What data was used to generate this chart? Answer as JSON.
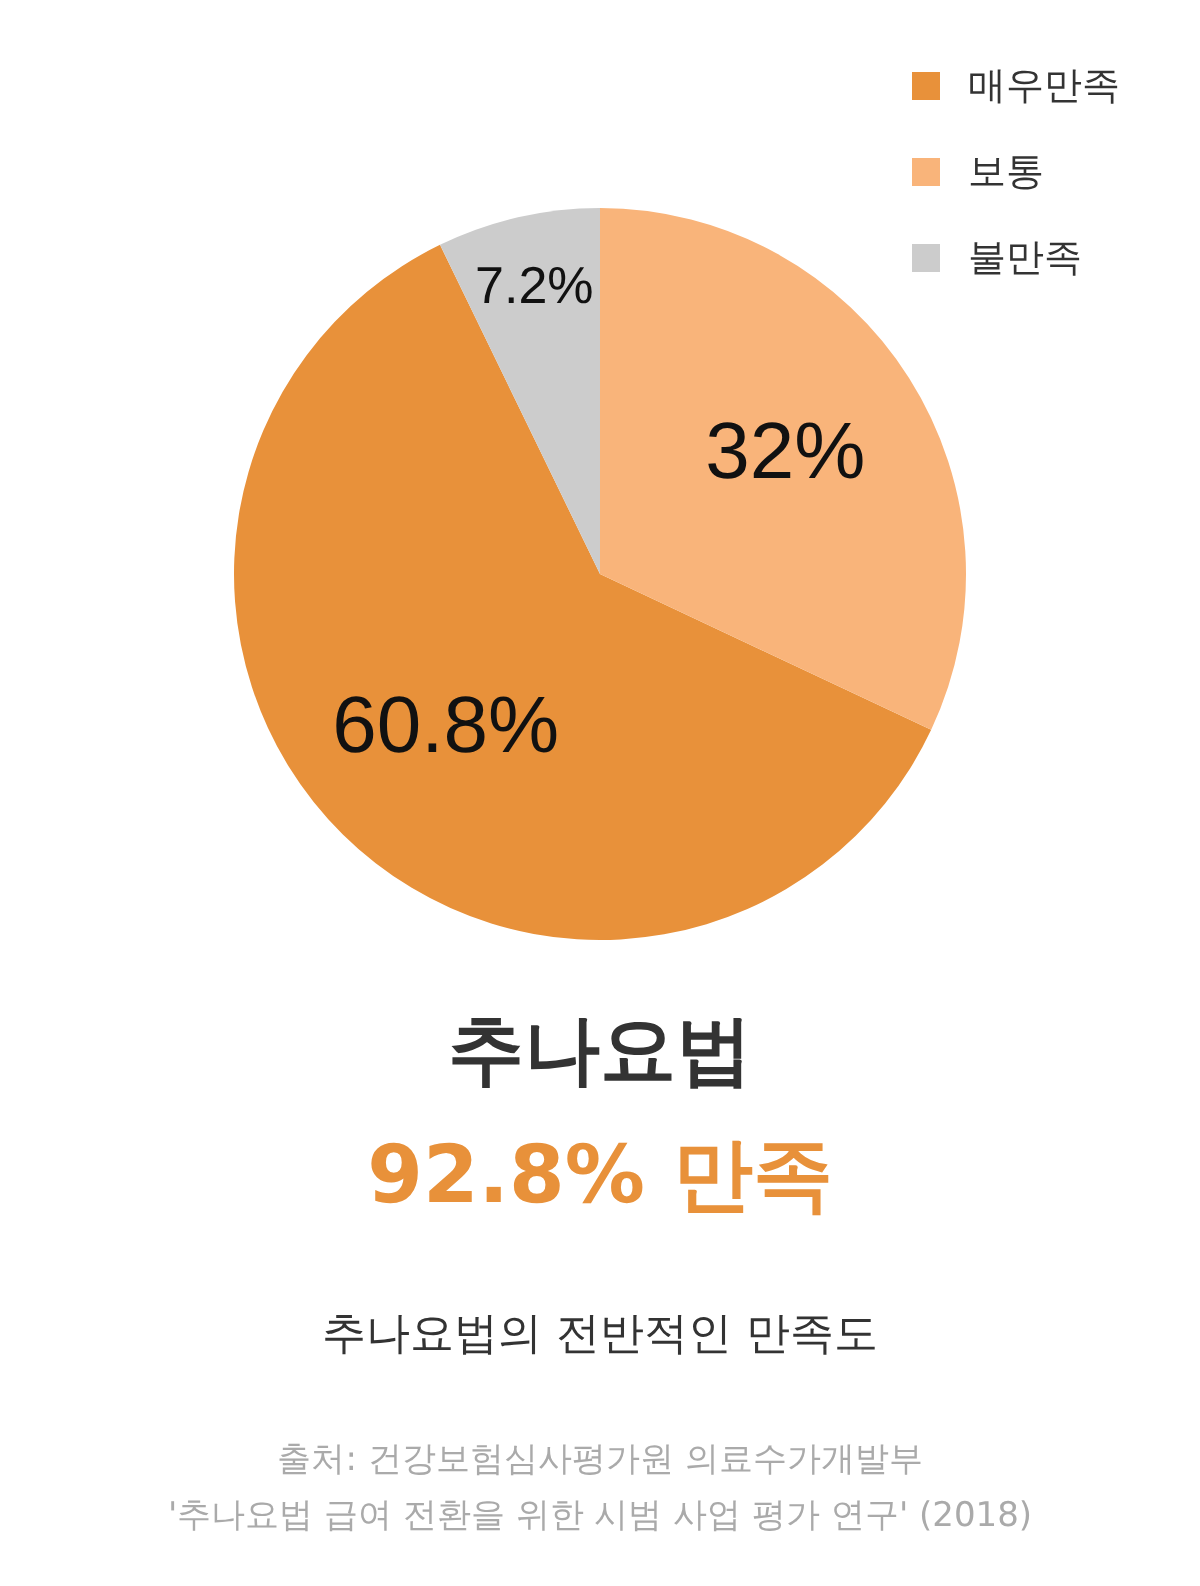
{
  "chart_data": {
    "type": "pie",
    "title": "추나요법",
    "subtitle": "92.8% 만족",
    "categories": [
      "매우만족",
      "보통",
      "불만족"
    ],
    "values": [
      60.8,
      32,
      7.2
    ],
    "colors": [
      "#e8913a",
      "#f9b47a",
      "#cccccc"
    ],
    "value_labels": [
      "60.8%",
      "32%",
      "7.2%"
    ],
    "legend": "top right",
    "annotations": [
      "추나요법의 전반적인 만족도",
      "출처: 건강보험심사평가원 의료수가개발부",
      "'추나요법 급여 전환을 위한 시범 사업 평가 연구' (2018)"
    ]
  }
}
